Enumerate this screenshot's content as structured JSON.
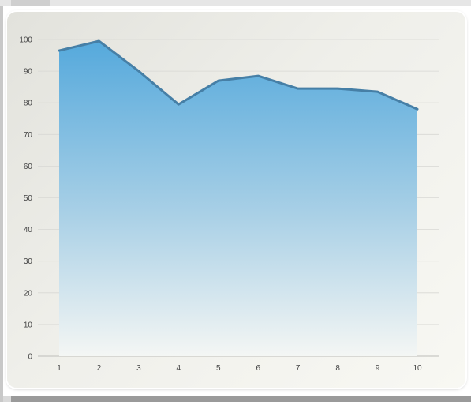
{
  "chart_data": {
    "type": "area",
    "title": "",
    "xlabel": "",
    "ylabel": "",
    "x": [
      1,
      2,
      3,
      4,
      5,
      6,
      7,
      8,
      9,
      10
    ],
    "series": [
      {
        "values": [
          96.5,
          99.5,
          90,
          79.5,
          87,
          88.5,
          84.5,
          84.5,
          83.5,
          78
        ],
        "line_color": "#467fa6",
        "fill_top_color": "#55a9dc",
        "fill_bottom_color": "#f4f6f4"
      }
    ],
    "ylim": [
      0,
      100
    ],
    "y_ticks": [
      0,
      10,
      20,
      30,
      40,
      50,
      60,
      70,
      80,
      90,
      100
    ],
    "x_ticks": [
      1,
      2,
      3,
      4,
      5,
      6,
      7,
      8,
      9,
      10
    ],
    "grid": "horizontal",
    "legend": "none",
    "grid_color": "#d8d8d4",
    "axis_color": "#c8c8c4"
  }
}
